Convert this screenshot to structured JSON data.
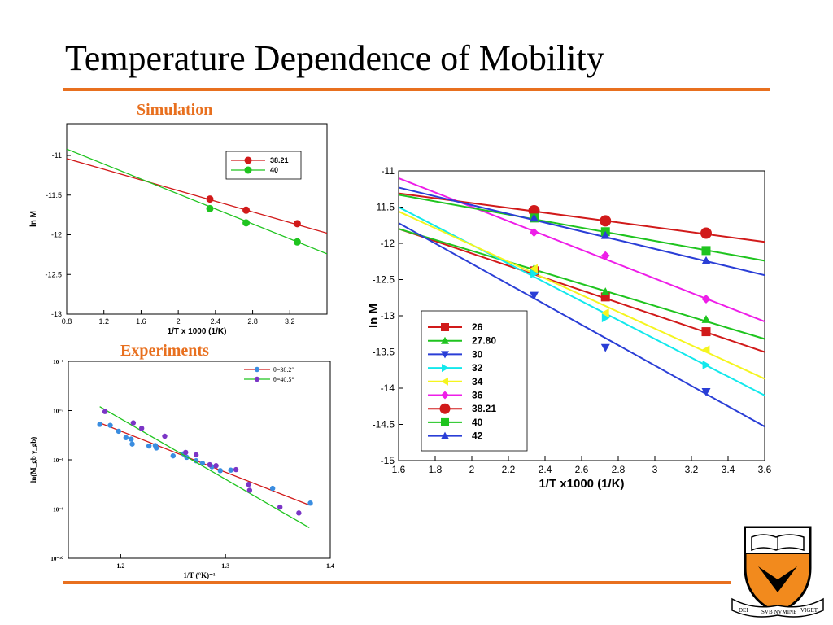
{
  "slide": {
    "title": "Temperature Dependence of Mobility",
    "simulation_label": "Simulation",
    "experiments_label": "Experiments"
  },
  "colors": {
    "accent": "#e8701f",
    "red": "#d11a1a",
    "green": "#1fc41f",
    "blue": "#2a3ed6",
    "cyan": "#12e8ec",
    "yellow": "#f5f51f",
    "magenta": "#ee1ee8",
    "purple": "#7b35c6",
    "light_blue": "#3a8de0"
  },
  "logo": {
    "icon": "princeton-shield-icon",
    "motto": [
      "DEI",
      "SVB NVMINE",
      "VIGET"
    ]
  },
  "chart_data": [
    {
      "id": "simulation",
      "type": "scatter",
      "xlabel": "1/T x 1000 (1/K)",
      "ylabel": "ln M",
      "xlim": [
        0.8,
        3.6
      ],
      "ylim": [
        -13,
        -10.6
      ],
      "xticks": [
        0.8,
        1.2,
        1.6,
        2,
        2.4,
        2.8,
        3.2
      ],
      "yticks": [
        -11,
        -11.5,
        -12,
        -12.5,
        -13
      ],
      "legend": "top-right",
      "series": [
        {
          "name": "38.21",
          "color": "#d11a1a",
          "marker": "circle",
          "x": [
            2.34,
            2.73,
            3.28
          ],
          "y": [
            -11.55,
            -11.69,
            -11.86
          ],
          "fit": [
            [
              0.8,
              -11.04
            ],
            [
              3.6,
              -11.98
            ]
          ]
        },
        {
          "name": "40",
          "color": "#1fc41f",
          "marker": "circle",
          "x": [
            2.34,
            2.73,
            3.28
          ],
          "y": [
            -11.67,
            -11.85,
            -12.09
          ],
          "fit": [
            [
              0.8,
              -10.92
            ],
            [
              3.6,
              -12.24
            ]
          ]
        }
      ]
    },
    {
      "id": "experiments",
      "type": "scatter",
      "xlabel": "1/T  (°K)⁻¹",
      "ylabel": "ln(M_gb γ_gb)",
      "xlim": [
        1.15,
        1.4
      ],
      "log_y": true,
      "ylim_exp": [
        -10,
        -6
      ],
      "xticks": [
        "1.2",
        "1.3",
        "1.4"
      ],
      "ytick_labels": [
        "10⁻⁶",
        "10⁻⁷",
        "10⁻⁸",
        "10⁻⁹",
        "10⁻¹⁰"
      ],
      "legend": "top-right",
      "series": [
        {
          "name": "θ=38.2°",
          "color": "#3a8de0",
          "line_color": "#d11a1a",
          "marker": "circle",
          "x": [
            1.18,
            1.19,
            1.198,
            1.205,
            1.21,
            1.211,
            1.227,
            1.233,
            1.234,
            1.25,
            1.26,
            1.263,
            1.272,
            1.278,
            1.287,
            1.295,
            1.305,
            1.345,
            1.381
          ],
          "y": [
            -7.28,
            -7.3,
            -7.42,
            -7.55,
            -7.58,
            -7.68,
            -7.72,
            -7.71,
            -7.76,
            -7.92,
            -7.88,
            -7.95,
            -8.02,
            -8.07,
            -8.14,
            -8.22,
            -8.21,
            -8.58,
            -8.88
          ],
          "fit": [
            [
              1.18,
              -7.25
            ],
            [
              1.38,
              -8.92
            ]
          ]
        },
        {
          "name": "θ=40.5°",
          "color": "#7b35c6",
          "line_color": "#1fc41f",
          "marker": "circle",
          "x": [
            1.185,
            1.212,
            1.22,
            1.242,
            1.262,
            1.272,
            1.285,
            1.291,
            1.31,
            1.322,
            1.323,
            1.352,
            1.37
          ],
          "y": [
            -7.02,
            -7.25,
            -7.36,
            -7.52,
            -7.85,
            -7.9,
            -8.1,
            -8.12,
            -8.2,
            -8.5,
            -8.62,
            -8.96,
            -9.08
          ],
          "fit": [
            [
              1.18,
              -6.92
            ],
            [
              1.38,
              -9.38
            ]
          ]
        }
      ]
    },
    {
      "id": "main",
      "type": "scatter",
      "xlabel": "1/T x1000 (1/K)",
      "ylabel": "ln M",
      "xlim": [
        1.6,
        3.6
      ],
      "ylim": [
        -15,
        -11
      ],
      "xticks": [
        1.6,
        1.8,
        2,
        2.2,
        2.4,
        2.6,
        2.8,
        3,
        3.2,
        3.4,
        3.6
      ],
      "yticks": [
        -11,
        -11.5,
        -12,
        -12.5,
        -13,
        -13.5,
        -14,
        -14.5,
        -15
      ],
      "legend": "bottom-left",
      "x_points": [
        2.34,
        2.73,
        3.28
      ],
      "series": [
        {
          "name": "26",
          "color": "#d11a1a",
          "marker": "square",
          "y": [
            -12.38,
            -12.74,
            -13.22
          ],
          "fit": [
            [
              1.6,
              -11.8
            ],
            [
              3.6,
              -13.5
            ]
          ]
        },
        {
          "name": "27.80",
          "color": "#1fc41f",
          "marker": "triangle-up",
          "y": [
            -12.35,
            -12.67,
            -13.05
          ],
          "fit": [
            [
              1.6,
              -11.8
            ],
            [
              3.6,
              -13.32
            ]
          ]
        },
        {
          "name": "30",
          "color": "#2a3ed6",
          "marker": "triangle-down",
          "y": [
            -12.72,
            -13.44,
            -14.05
          ],
          "fit": [
            [
              1.6,
              -11.72
            ],
            [
              3.6,
              -14.53
            ]
          ]
        },
        {
          "name": "32",
          "color": "#12e8ec",
          "marker": "triangle-right",
          "y": [
            -12.42,
            -13.03,
            -13.68
          ],
          "fit": [
            [
              1.6,
              -11.5
            ],
            [
              3.6,
              -14.1
            ]
          ]
        },
        {
          "name": "34",
          "color": "#f5f51f",
          "marker": "triangle-left",
          "y": [
            -12.35,
            -12.96,
            -13.47
          ],
          "fit": [
            [
              1.6,
              -11.56
            ],
            [
              3.6,
              -13.87
            ]
          ]
        },
        {
          "name": "36",
          "color": "#ee1ee8",
          "marker": "diamond",
          "y": [
            -11.85,
            -12.17,
            -12.77
          ],
          "fit": [
            [
              1.6,
              -11.1
            ],
            [
              3.6,
              -13.08
            ]
          ]
        },
        {
          "name": "38.21",
          "color": "#d11a1a",
          "marker": "circle",
          "y": [
            -11.55,
            -11.69,
            -11.86
          ],
          "fit": [
            [
              1.6,
              -11.31
            ],
            [
              3.6,
              -11.98
            ]
          ]
        },
        {
          "name": "40",
          "color": "#1fc41f",
          "marker": "square",
          "y": [
            -11.65,
            -11.84,
            -12.1
          ],
          "fit": [
            [
              1.6,
              -11.33
            ],
            [
              3.6,
              -12.24
            ]
          ]
        },
        {
          "name": "42",
          "color": "#2a3ed6",
          "marker": "triangle-up",
          "y": [
            -11.65,
            -11.89,
            -12.24
          ],
          "fit": [
            [
              1.6,
              -11.23
            ],
            [
              3.6,
              -12.44
            ]
          ]
        }
      ]
    }
  ]
}
